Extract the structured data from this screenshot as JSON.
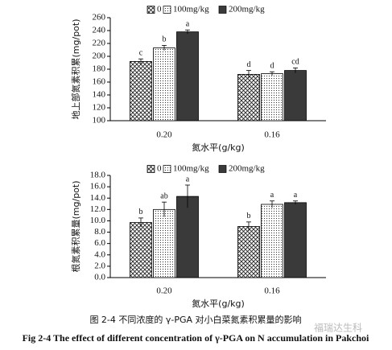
{
  "chart_data": [
    {
      "type": "bar",
      "y_label": "地上部氮素积累(mg/pot)",
      "x_label": "氮水平(g/kg)",
      "categories": [
        "0.20",
        "0.16"
      ],
      "series": [
        {
          "name": "0",
          "pattern": "crosshatch",
          "values": [
            192,
            172
          ],
          "errors": [
            4,
            6
          ],
          "letters": [
            "c",
            "d"
          ]
        },
        {
          "name": "100mg/kg",
          "pattern": "dots",
          "values": [
            213,
            173
          ],
          "errors": [
            4,
            3
          ],
          "letters": [
            "b",
            "d"
          ]
        },
        {
          "name": "200mg/kg",
          "pattern": "solid",
          "values": [
            238,
            178
          ],
          "errors": [
            3,
            4
          ],
          "letters": [
            "a",
            "cd"
          ]
        }
      ],
      "ylim": [
        100,
        260
      ],
      "yticks": [
        100,
        120,
        140,
        160,
        180,
        200,
        220,
        240,
        260
      ]
    },
    {
      "type": "bar",
      "y_label": "根氮素积累量(mg/pot)",
      "x_label": "氮水平(g/kg)",
      "categories": [
        "0.20",
        "0.16"
      ],
      "series": [
        {
          "name": "0",
          "pattern": "crosshatch",
          "values": [
            9.7,
            9.0
          ],
          "errors": [
            0.8,
            0.8
          ],
          "letters": [
            "b",
            "b"
          ]
        },
        {
          "name": "100mg/kg",
          "pattern": "dots",
          "values": [
            12.0,
            12.9
          ],
          "errors": [
            1.3,
            0.6
          ],
          "letters": [
            "ab",
            "a"
          ]
        },
        {
          "name": "200mg/kg",
          "pattern": "solid",
          "values": [
            14.3,
            13.2
          ],
          "errors": [
            2.0,
            0.3
          ],
          "letters": [
            "a",
            "a"
          ]
        }
      ],
      "ylim": [
        0,
        18
      ],
      "yticks": [
        {
          "value": 0,
          "label": "0.0"
        },
        {
          "value": 2,
          "label": "2.0"
        },
        {
          "value": 4,
          "label": "4.0"
        },
        {
          "value": 6,
          "label": "6.0"
        },
        {
          "value": 8,
          "label": "8.0"
        },
        {
          "value": 10,
          "label": "10.0"
        },
        {
          "value": 12,
          "label": "12.0"
        },
        {
          "value": 14,
          "label": "14.0"
        },
        {
          "value": 16,
          "label": "16.0"
        },
        {
          "value": 18,
          "label": "18.0"
        }
      ]
    }
  ],
  "caption": {
    "zh": "图 2-4  不同浓度的 γ-PGA 对小白菜氮素积累量的影响",
    "en": "Fig 2-4 The effect of different concentration of γ-PGA on N accumulation in Pakchoi"
  },
  "watermark": "福瑞达生科"
}
